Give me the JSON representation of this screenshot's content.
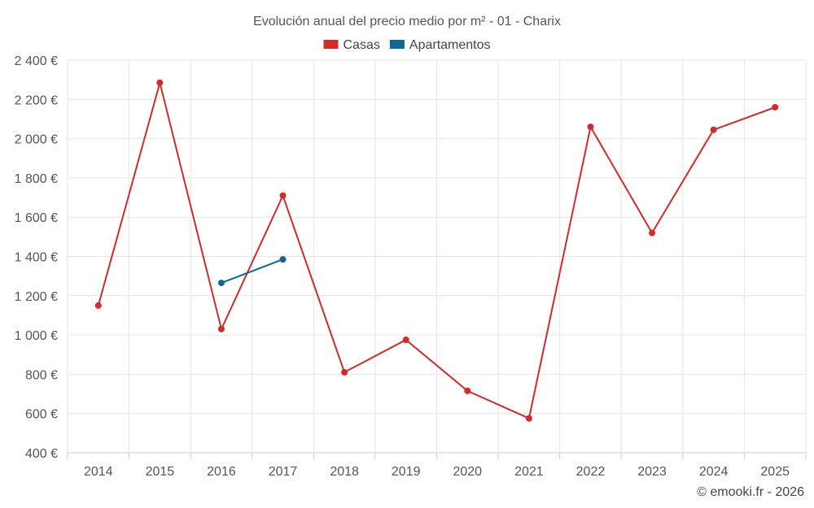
{
  "chart_data": {
    "type": "line",
    "title": "Evolución anual del precio medio por m² - 01 - Charix",
    "categories": [
      "2014",
      "2015",
      "2016",
      "2017",
      "2018",
      "2019",
      "2020",
      "2021",
      "2022",
      "2023",
      "2024",
      "2025"
    ],
    "series": [
      {
        "name": "Casas",
        "color": "#d42a2a",
        "values": [
          1150,
          2285,
          1030,
          1710,
          810,
          975,
          715,
          575,
          2060,
          1520,
          2045,
          2160
        ]
      },
      {
        "name": "Apartamentos",
        "color": "#0e6699",
        "values": [
          null,
          null,
          1265,
          1385,
          null,
          null,
          null,
          null,
          null,
          null,
          null,
          null
        ]
      }
    ],
    "ylim": [
      400,
      2400
    ],
    "yticks": [
      400,
      600,
      800,
      1000,
      1200,
      1400,
      1600,
      1800,
      2000,
      2200,
      2400
    ],
    "ytick_labels": [
      "400 €",
      "600 €",
      "800 €",
      "1 000 €",
      "1 200 €",
      "1 400 €",
      "1 600 €",
      "1 800 €",
      "2 000 €",
      "2 200 €",
      "2 400 €"
    ],
    "grid": true,
    "legend_position": "top-center"
  },
  "credit": "© emooki.fr - 2026"
}
